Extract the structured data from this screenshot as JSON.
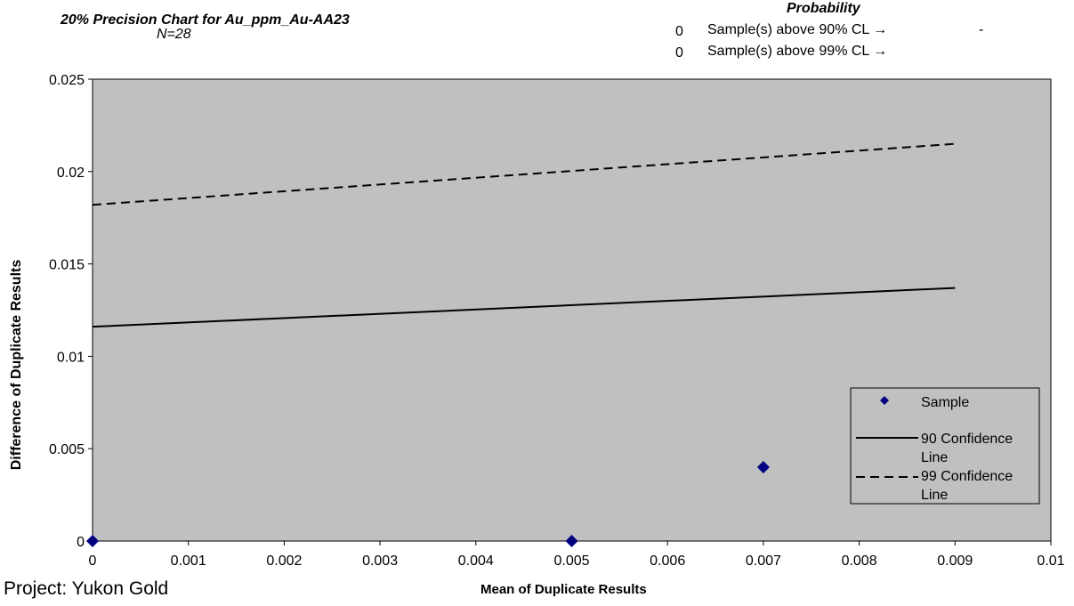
{
  "header": {
    "title": "20% Precision Chart for Au_ppm_Au-AA23",
    "subtitle": "N=28",
    "probability_label": "Probability",
    "cl_rows": [
      {
        "count": "0",
        "text": "Sample(s) above 90% CL →",
        "value": "-"
      },
      {
        "count": "0",
        "text": "Sample(s) above 99% CL →",
        "value": ""
      }
    ]
  },
  "footer": {
    "project": "Project: Yukon Gold"
  },
  "chart_data": {
    "type": "scatter",
    "xlabel": "Mean of Duplicate Results",
    "ylabel": "Difference of Duplicate Results",
    "xlim": [
      0,
      0.01
    ],
    "ylim": [
      0,
      0.025
    ],
    "x_ticks": [
      "0",
      "0.001",
      "0.002",
      "0.003",
      "0.004",
      "0.005",
      "0.006",
      "0.007",
      "0.008",
      "0.009",
      "0.01"
    ],
    "y_ticks": [
      "0",
      "0.005",
      "0.01",
      "0.015",
      "0.02",
      "0.025"
    ],
    "grid": false,
    "plot_background": "#c0c0c0",
    "legend_position": "bottom-right",
    "series": [
      {
        "name": "Sample",
        "kind": "points",
        "color": "#000080",
        "marker": "diamond",
        "points": [
          {
            "x": 0,
            "y": 0
          },
          {
            "x": 0.005,
            "y": 0
          },
          {
            "x": 0.007,
            "y": 0.004
          }
        ]
      },
      {
        "name": "90 Confidence Line",
        "kind": "line",
        "color": "#000000",
        "dash": "solid",
        "points": [
          {
            "x": 0,
            "y": 0.0116
          },
          {
            "x": 0.009,
            "y": 0.0137
          }
        ]
      },
      {
        "name": "99 Confidence Line",
        "kind": "line",
        "color": "#000000",
        "dash": "dashed",
        "points": [
          {
            "x": 0,
            "y": 0.0182
          },
          {
            "x": 0.009,
            "y": 0.0215
          }
        ]
      }
    ],
    "legend": [
      {
        "line1": "Sample",
        "line2": ""
      },
      {
        "line1": "90 Confidence",
        "line2": "Line"
      },
      {
        "line1": "99 Confidence",
        "line2": "Line"
      }
    ]
  }
}
